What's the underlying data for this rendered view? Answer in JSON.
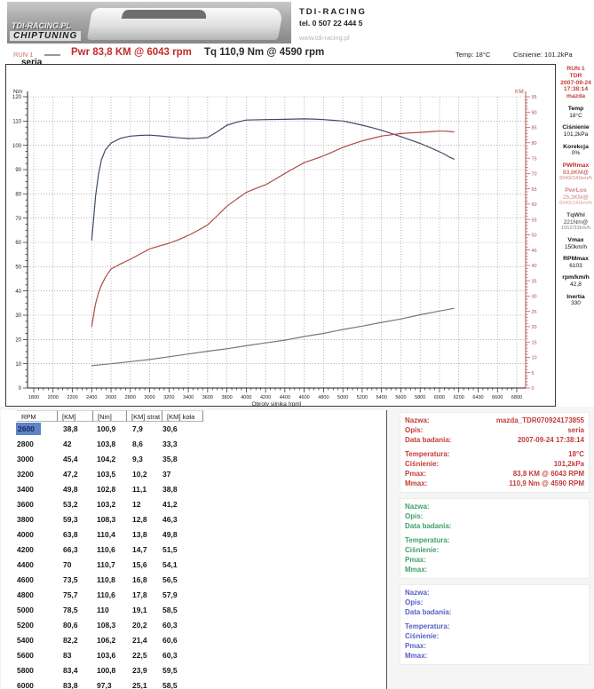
{
  "header": {
    "logo": {
      "brand_overlay": "TDI-RACING.PL",
      "sub_overlay": "CHIPTUNING"
    },
    "contact": {
      "company": "TDI-RACING",
      "phone": "tel. 0 507 22 444 5",
      "website": "www.tdi-racing.pl"
    }
  },
  "legend": {
    "run_label": "RUN 1",
    "power_reading": "Pwr 83,8 KM @ 6043 rpm",
    "torque_reading": "Tq 110,9 Nm @ 4590 rpm",
    "temp_reading": "Temp: 18°C",
    "pressure_reading": "Cisnienie: 101.2kPa",
    "series_name": "seria"
  },
  "chart_data": {
    "type": "line",
    "xlabel": "Obroty silnika [rpm]",
    "x_range": [
      1800,
      6800
    ],
    "x_tick_step": 200,
    "left_axis": {
      "label": "Nm",
      "range": [
        0,
        120
      ],
      "tick_step": 10,
      "color": "#222222"
    },
    "right_axis": {
      "label": "KM",
      "range": [
        0,
        95
      ],
      "tick_step": 5,
      "color": "#b05050"
    },
    "grid": "dotted",
    "series": [
      {
        "name": "torque_nm",
        "axis": "left",
        "color": "#3d4e63",
        "points": [
          [
            2400,
            61
          ],
          [
            2420,
            70
          ],
          [
            2440,
            79
          ],
          [
            2470,
            88
          ],
          [
            2500,
            94
          ],
          [
            2540,
            98
          ],
          [
            2600,
            100.9
          ],
          [
            2700,
            102.9
          ],
          [
            2800,
            103.8
          ],
          [
            2900,
            104.1
          ],
          [
            3000,
            104.2
          ],
          [
            3100,
            103.9
          ],
          [
            3200,
            103.5
          ],
          [
            3300,
            103.1
          ],
          [
            3400,
            102.8
          ],
          [
            3500,
            102.9
          ],
          [
            3600,
            103.2
          ],
          [
            3700,
            105.6
          ],
          [
            3800,
            108.3
          ],
          [
            3900,
            109.5
          ],
          [
            4000,
            110.4
          ],
          [
            4200,
            110.6
          ],
          [
            4400,
            110.7
          ],
          [
            4590,
            110.9
          ],
          [
            4700,
            110.8
          ],
          [
            4800,
            110.6
          ],
          [
            4900,
            110.3
          ],
          [
            5000,
            110
          ],
          [
            5100,
            109.2
          ],
          [
            5200,
            108.3
          ],
          [
            5300,
            107.3
          ],
          [
            5400,
            106.2
          ],
          [
            5500,
            104.9
          ],
          [
            5600,
            103.6
          ],
          [
            5700,
            102.2
          ],
          [
            5800,
            100.8
          ],
          [
            5900,
            99.1
          ],
          [
            6000,
            97.3
          ],
          [
            6050,
            96.4
          ],
          [
            6100,
            95.2
          ],
          [
            6150,
            94.3
          ]
        ]
      },
      {
        "name": "power_km",
        "axis": "right",
        "color": "#b04a45",
        "points": [
          [
            2400,
            20
          ],
          [
            2420,
            24
          ],
          [
            2440,
            27.5
          ],
          [
            2470,
            31
          ],
          [
            2500,
            33.5
          ],
          [
            2540,
            36
          ],
          [
            2600,
            38.8
          ],
          [
            2700,
            40.5
          ],
          [
            2800,
            42
          ],
          [
            2900,
            43.7
          ],
          [
            3000,
            45.4
          ],
          [
            3100,
            46.3
          ],
          [
            3200,
            47.2
          ],
          [
            3300,
            48.4
          ],
          [
            3400,
            49.8
          ],
          [
            3500,
            51.4
          ],
          [
            3600,
            53.2
          ],
          [
            3700,
            56.2
          ],
          [
            3800,
            59.3
          ],
          [
            3900,
            61.6
          ],
          [
            4000,
            63.8
          ],
          [
            4100,
            65.1
          ],
          [
            4200,
            66.3
          ],
          [
            4300,
            68.1
          ],
          [
            4400,
            70
          ],
          [
            4500,
            71.8
          ],
          [
            4600,
            73.5
          ],
          [
            4700,
            74.6
          ],
          [
            4800,
            75.7
          ],
          [
            4900,
            77.1
          ],
          [
            5000,
            78.5
          ],
          [
            5100,
            79.6
          ],
          [
            5200,
            80.6
          ],
          [
            5300,
            81.4
          ],
          [
            5400,
            82.2
          ],
          [
            5500,
            82.6
          ],
          [
            5600,
            83
          ],
          [
            5700,
            83.2
          ],
          [
            5800,
            83.4
          ],
          [
            5900,
            83.6
          ],
          [
            6000,
            83.8
          ],
          [
            6043,
            83.8
          ],
          [
            6100,
            83.7
          ],
          [
            6150,
            83.5
          ]
        ]
      },
      {
        "name": "loss_km",
        "axis": "right",
        "color": "#787878",
        "points": [
          [
            2400,
            7.3
          ],
          [
            2600,
            7.9
          ],
          [
            2800,
            8.6
          ],
          [
            3000,
            9.3
          ],
          [
            3200,
            10.2
          ],
          [
            3400,
            11.1
          ],
          [
            3600,
            12
          ],
          [
            3800,
            12.8
          ],
          [
            4000,
            13.8
          ],
          [
            4200,
            14.7
          ],
          [
            4400,
            15.6
          ],
          [
            4600,
            16.8
          ],
          [
            4800,
            17.8
          ],
          [
            5000,
            19.1
          ],
          [
            5200,
            20.2
          ],
          [
            5400,
            21.4
          ],
          [
            5600,
            22.5
          ],
          [
            5800,
            23.9
          ],
          [
            6000,
            25.1
          ],
          [
            6100,
            25.7
          ],
          [
            6150,
            26
          ]
        ]
      }
    ]
  },
  "sidebar": {
    "run": "RUN 1",
    "tuner": "TDR",
    "date": "2007-09-24",
    "time": "17:38:14",
    "vehicle": "mazda",
    "header_color": "#c4403a",
    "stats": [
      {
        "label": "Temp",
        "value": "18°C",
        "label_color": "#111111",
        "value_color": "#111111"
      },
      {
        "label": "Ciśnienie",
        "value": "101,2kPa",
        "label_color": "#111111",
        "value_color": "#111111"
      },
      {
        "label": "Korekcja",
        "value": "0%",
        "label_color": "#111111",
        "value_color": "#111111"
      },
      {
        "label": "PWRmax",
        "value": "83,8KM@",
        "value2": "6043/141km/h",
        "label_color": "#c42b2b",
        "value_color": "#c4403a",
        "value2_color": "#d07f7a"
      },
      {
        "label": "PwrLos",
        "value": "25,3KM@",
        "value2": "6043/141km/h",
        "label_color": "#d98080",
        "value_color": "#d98080",
        "value2_color": "#dc9a95"
      },
      {
        "label": "TqWhl",
        "value": "221Nm@",
        "value2": "1552/33km/h",
        "label_color": "#454545",
        "value_color": "#454545",
        "value2_color": "#8a8a8a"
      },
      {
        "label": "Vmax",
        "value": "150km/h",
        "label_color": "#111111",
        "value_color": "#111111"
      },
      {
        "label": "RPMmax",
        "value": "6103",
        "label_color": "#111111",
        "value_color": "#111111"
      },
      {
        "label": "rpm/km/h",
        "value": "42,8",
        "label_color": "#111111",
        "value_color": "#111111"
      },
      {
        "label": "Inertia",
        "value": "330",
        "label_color": "#111111",
        "value_color": "#111111"
      }
    ]
  },
  "table": {
    "headers": [
      "RPM",
      "[KM]",
      "[Nm]",
      "[KM] strat",
      "[KM] koła"
    ],
    "selected": {
      "row": 0,
      "col": 0
    },
    "rows": [
      [
        "2600",
        "38,8",
        "100,9",
        "7,9",
        "30,6"
      ],
      [
        "2800",
        "42",
        "103,8",
        "8,6",
        "33,3"
      ],
      [
        "3000",
        "45,4",
        "104,2",
        "9,3",
        "35,8"
      ],
      [
        "3200",
        "47,2",
        "103,5",
        "10,2",
        "37"
      ],
      [
        "3400",
        "49,8",
        "102,8",
        "11,1",
        "38,8"
      ],
      [
        "3600",
        "53,2",
        "103,2",
        "12",
        "41,2"
      ],
      [
        "3800",
        "59,3",
        "108,3",
        "12,8",
        "46,3"
      ],
      [
        "4000",
        "63,8",
        "110,4",
        "13,8",
        "49,8"
      ],
      [
        "4200",
        "66,3",
        "110,6",
        "14,7",
        "51,5"
      ],
      [
        "4400",
        "70",
        "110,7",
        "15,6",
        "54,1"
      ],
      [
        "4600",
        "73,5",
        "110,8",
        "16,8",
        "56,5"
      ],
      [
        "4800",
        "75,7",
        "110,6",
        "17,8",
        "57,9"
      ],
      [
        "5000",
        "78,5",
        "110",
        "19,1",
        "58,5"
      ],
      [
        "5200",
        "80,6",
        "108,3",
        "20,2",
        "60,3"
      ],
      [
        "5400",
        "82,2",
        "106,2",
        "21,4",
        "60,6"
      ],
      [
        "5600",
        "83",
        "103,6",
        "22,5",
        "60,3"
      ],
      [
        "5800",
        "83,4",
        "100,8",
        "23,9",
        "59,5"
      ],
      [
        "6000",
        "83,8",
        "97,3",
        "25,1",
        "58,5"
      ]
    ]
  },
  "panels": [
    {
      "accent": "#c43b3b",
      "fields": [
        {
          "label": "Nazwa:",
          "value": "mazda_TDR070924173855"
        },
        {
          "label": "Opis:",
          "value": "seria"
        },
        {
          "label": "Data badania:",
          "value": "2007-09-24 17:38:14"
        },
        {
          "label": "Temperatura:",
          "value": "18°C"
        },
        {
          "label": "Ciśnienie:",
          "value": "101,2kPa"
        },
        {
          "label": "Pmax:",
          "value": "83,8 KM @ 6043 RPM"
        },
        {
          "label": "Mmax:",
          "value": "110,9 Nm @ 4590 RPM"
        }
      ]
    },
    {
      "accent": "#3fa06a",
      "fields": [
        {
          "label": "Nazwa:",
          "value": ""
        },
        {
          "label": "Opis:",
          "value": ""
        },
        {
          "label": "Data badania:",
          "value": ""
        },
        {
          "label": "Temperatura:",
          "value": ""
        },
        {
          "label": "Ciśnienie:",
          "value": ""
        },
        {
          "label": "Pmax:",
          "value": ""
        },
        {
          "label": "Mmax:",
          "value": ""
        }
      ]
    },
    {
      "accent": "#5560c8",
      "fields": [
        {
          "label": "Nazwa:",
          "value": ""
        },
        {
          "label": "Opis:",
          "value": ""
        },
        {
          "label": "Data badania:",
          "value": ""
        },
        {
          "label": "Temperatura:",
          "value": ""
        },
        {
          "label": "Ciśnienie:",
          "value": ""
        },
        {
          "label": "Pmax:",
          "value": ""
        },
        {
          "label": "Mmax:",
          "value": ""
        }
      ]
    }
  ]
}
